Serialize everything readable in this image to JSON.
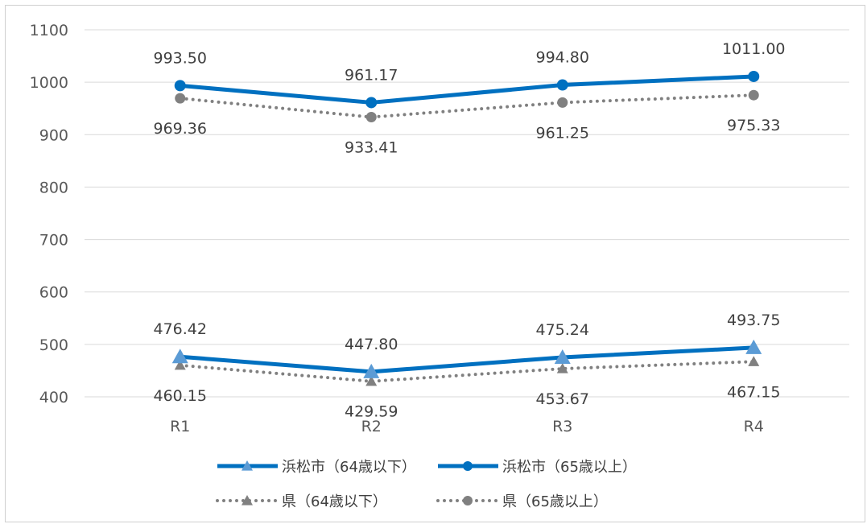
{
  "chart_data": {
    "type": "line",
    "categories": [
      "R1",
      "R2",
      "R3",
      "R4"
    ],
    "ylim": [
      400,
      1100
    ],
    "yticks": [
      400,
      500,
      600,
      700,
      800,
      900,
      1000,
      1100
    ],
    "grid": true,
    "legend_position": "bottom",
    "series": [
      {
        "name": "浜松市（64歳以下）",
        "values": [
          476.42,
          447.8,
          475.24,
          493.75
        ],
        "labels": [
          "476.42",
          "447.80",
          "475.24",
          "493.75"
        ],
        "color": "#0070C0",
        "marker": "triangle",
        "marker_color": "#5B9BD5",
        "line": "solid",
        "label_pos": "above"
      },
      {
        "name": "浜松市（65歳以上）",
        "values": [
          993.5,
          961.17,
          994.8,
          1011.0
        ],
        "labels": [
          "993.50",
          "961.17",
          "994.80",
          "1011.00"
        ],
        "color": "#0070C0",
        "marker": "circle",
        "marker_color": "#0070C0",
        "line": "solid",
        "label_pos": "above"
      },
      {
        "name": "県（64歳以下）",
        "values": [
          460.15,
          429.59,
          453.67,
          467.15
        ],
        "labels": [
          "460.15",
          "429.59",
          "453.67",
          "467.15"
        ],
        "color": "#808080",
        "marker": "triangle",
        "marker_color": "#808080",
        "line": "dotted",
        "label_pos": "below"
      },
      {
        "name": "県（65歳以上）",
        "values": [
          969.36,
          933.41,
          961.25,
          975.33
        ],
        "labels": [
          "969.36",
          "933.41",
          "961.25",
          "975.33"
        ],
        "color": "#808080",
        "marker": "circle",
        "marker_color": "#808080",
        "line": "dotted",
        "label_pos": "below"
      }
    ]
  }
}
